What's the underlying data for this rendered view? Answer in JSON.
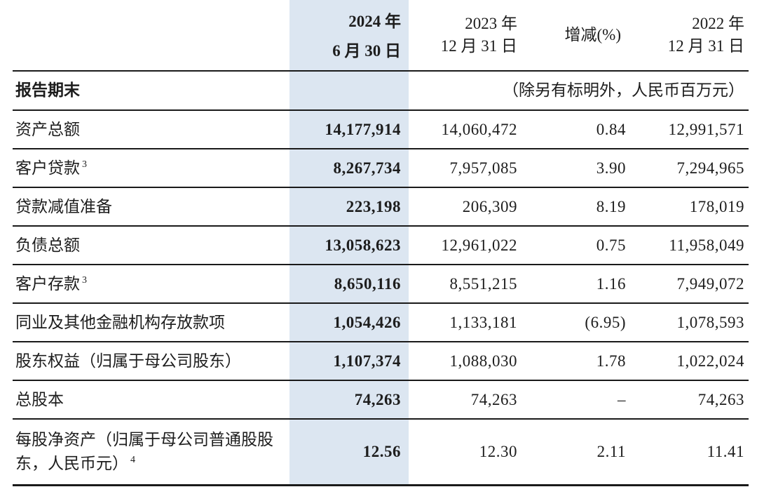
{
  "header": {
    "col_2024": {
      "line1": "2024 年",
      "line2": "6 月 30 日"
    },
    "col_2023": {
      "line1": "2023 年",
      "line2": "12 月 31 日"
    },
    "col_change": {
      "label": "增减(%)"
    },
    "col_2022": {
      "line1": "2022 年",
      "line2": "12 月 31 日"
    }
  },
  "section": {
    "label": "报告期末",
    "unit_note": "（除另有标明外，人民币百万元）"
  },
  "rows": [
    {
      "label": "资产总额",
      "sup": "",
      "v_2024": "14,177,914",
      "v_2023": "14,060,472",
      "change_pct": "0.84",
      "v_2022": "12,991,571"
    },
    {
      "label": "客户贷款",
      "sup": "3",
      "v_2024": "8,267,734",
      "v_2023": "7,957,085",
      "change_pct": "3.90",
      "v_2022": "7,294,965"
    },
    {
      "label": "贷款减值准备",
      "sup": "",
      "v_2024": "223,198",
      "v_2023": "206,309",
      "change_pct": "8.19",
      "v_2022": "178,019"
    },
    {
      "label": "负债总额",
      "sup": "",
      "v_2024": "13,058,623",
      "v_2023": "12,961,022",
      "change_pct": "0.75",
      "v_2022": "11,958,049"
    },
    {
      "label": "客户存款",
      "sup": "3",
      "v_2024": "8,650,116",
      "v_2023": "8,551,215",
      "change_pct": "1.16",
      "v_2022": "7,949,072"
    },
    {
      "label": "同业及其他金融机构存放款项",
      "sup": "",
      "v_2024": "1,054,426",
      "v_2023": "1,133,181",
      "change_pct": "(6.95)",
      "v_2022": "1,078,593"
    },
    {
      "label": "股东权益（归属于母公司股东）",
      "sup": "",
      "v_2024": "1,107,374",
      "v_2023": "1,088,030",
      "change_pct": "1.78",
      "v_2022": "1,022,024"
    },
    {
      "label": "总股本",
      "sup": "",
      "v_2024": "74,263",
      "v_2023": "74,263",
      "change_pct": "–",
      "v_2022": "74,263"
    },
    {
      "label": "每股净资产（归属于母公司普通股股东，人民币元）",
      "sup": "4",
      "v_2024": "12.56",
      "v_2023": "12.30",
      "change_pct": "2.11",
      "v_2022": "11.41"
    }
  ],
  "colors": {
    "highlight_column": "#dce6f1",
    "text": "#1d1d1d",
    "rule_line": "#1a1a1a"
  }
}
